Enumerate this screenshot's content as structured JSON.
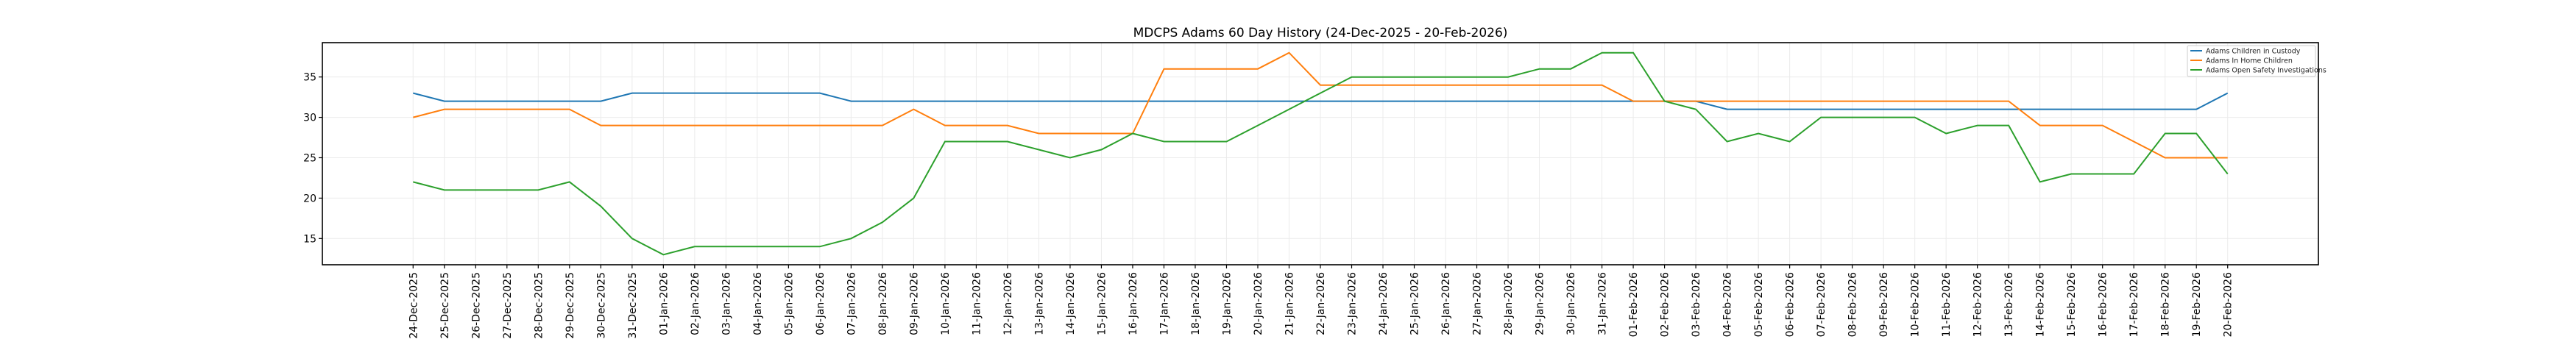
{
  "chart_data": {
    "type": "line",
    "title": "MDCPS Adams 60 Day History (24-Dec-2025 - 20-Feb-2026)",
    "xlabel": "",
    "ylabel": "",
    "ylim": [
      11.75,
      39.25
    ],
    "yticks": [
      15,
      20,
      25,
      30,
      35
    ],
    "grid": true,
    "legend_position": "top-right",
    "categories": [
      "24-Dec-2025",
      "25-Dec-2025",
      "26-Dec-2025",
      "27-Dec-2025",
      "28-Dec-2025",
      "29-Dec-2025",
      "30-Dec-2025",
      "31-Dec-2025",
      "01-Jan-2026",
      "02-Jan-2026",
      "03-Jan-2026",
      "04-Jan-2026",
      "05-Jan-2026",
      "06-Jan-2026",
      "07-Jan-2026",
      "08-Jan-2026",
      "09-Jan-2026",
      "10-Jan-2026",
      "11-Jan-2026",
      "12-Jan-2026",
      "13-Jan-2026",
      "14-Jan-2026",
      "15-Jan-2026",
      "16-Jan-2026",
      "17-Jan-2026",
      "18-Jan-2026",
      "19-Jan-2026",
      "20-Jan-2026",
      "21-Jan-2026",
      "22-Jan-2026",
      "23-Jan-2026",
      "24-Jan-2026",
      "25-Jan-2026",
      "26-Jan-2026",
      "27-Jan-2026",
      "28-Jan-2026",
      "29-Jan-2026",
      "30-Jan-2026",
      "31-Jan-2026",
      "01-Feb-2026",
      "02-Feb-2026",
      "03-Feb-2026",
      "04-Feb-2026",
      "05-Feb-2026",
      "06-Feb-2026",
      "07-Feb-2026",
      "08-Feb-2026",
      "09-Feb-2026",
      "10-Feb-2026",
      "11-Feb-2026",
      "12-Feb-2026",
      "13-Feb-2026",
      "14-Feb-2026",
      "15-Feb-2026",
      "16-Feb-2026",
      "17-Feb-2026",
      "18-Feb-2026",
      "19-Feb-2026",
      "20-Feb-2026"
    ],
    "series": [
      {
        "name": "Adams Children in Custody",
        "color": "#1f77b4",
        "values": [
          33,
          32,
          32,
          32,
          32,
          32,
          32,
          33,
          33,
          33,
          33,
          33,
          33,
          33,
          32,
          32,
          32,
          32,
          32,
          32,
          32,
          32,
          32,
          32,
          32,
          32,
          32,
          32,
          32,
          32,
          32,
          32,
          32,
          32,
          32,
          32,
          32,
          32,
          32,
          32,
          32,
          32,
          31,
          31,
          31,
          31,
          31,
          31,
          31,
          31,
          31,
          31,
          31,
          31,
          31,
          31,
          31,
          31,
          33
        ]
      },
      {
        "name": "Adams In Home Children",
        "color": "#ff7f0e",
        "values": [
          30,
          31,
          31,
          31,
          31,
          31,
          29,
          29,
          29,
          29,
          29,
          29,
          29,
          29,
          29,
          29,
          31,
          29,
          29,
          29,
          28,
          28,
          28,
          28,
          36,
          36,
          36,
          36,
          38,
          34,
          34,
          34,
          34,
          34,
          34,
          34,
          34,
          34,
          34,
          32,
          32,
          32,
          32,
          32,
          32,
          32,
          32,
          32,
          32,
          32,
          32,
          32,
          29,
          29,
          29,
          27,
          25,
          25,
          25
        ]
      },
      {
        "name": "Adams Open Safety Investigations",
        "color": "#2ca02c",
        "values": [
          22,
          21,
          21,
          21,
          21,
          22,
          19,
          15,
          13,
          14,
          14,
          14,
          14,
          14,
          15,
          17,
          20,
          27,
          27,
          27,
          26,
          25,
          26,
          28,
          27,
          27,
          27,
          29,
          31,
          33,
          35,
          35,
          35,
          35,
          35,
          35,
          36,
          36,
          38,
          38,
          32,
          31,
          27,
          28,
          27,
          30,
          30,
          30,
          30,
          28,
          29,
          29,
          22,
          23,
          23,
          23,
          28,
          28,
          23
        ]
      }
    ]
  }
}
